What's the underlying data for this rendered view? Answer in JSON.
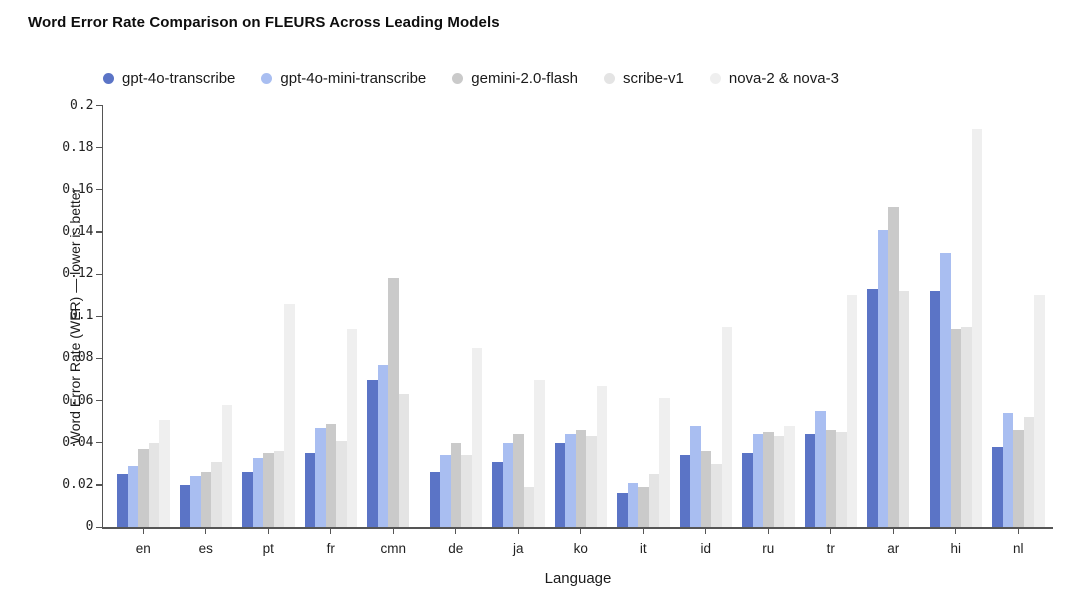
{
  "chart_data": {
    "type": "bar",
    "title": "Word Error Rate Comparison on FLEURS Across Leading Models",
    "xlabel": "Language",
    "ylabel": "Word Error Rate (WER) — lower is better",
    "ylim": [
      0,
      0.2
    ],
    "grid": false,
    "legend_position": "top",
    "yticks": [
      {
        "label": "0",
        "value": 0
      },
      {
        "label": "0.02",
        "value": 0.02
      },
      {
        "label": "0.04",
        "value": 0.04
      },
      {
        "label": "0.06",
        "value": 0.06
      },
      {
        "label": "0.08",
        "value": 0.08
      },
      {
        "label": "0.1",
        "value": 0.1
      },
      {
        "label": "0.12",
        "value": 0.12
      },
      {
        "label": "0.14",
        "value": 0.14
      },
      {
        "label": "0.16",
        "value": 0.16
      },
      {
        "label": "0.18",
        "value": 0.18
      },
      {
        "label": "0.2",
        "value": 0.2
      }
    ],
    "categories": [
      "en",
      "es",
      "pt",
      "fr",
      "cmn",
      "de",
      "ja",
      "ko",
      "it",
      "id",
      "ru",
      "tr",
      "ar",
      "hi",
      "nl"
    ],
    "series": [
      {
        "name": "gpt-4o-transcribe",
        "color": "#5b74c6",
        "values": [
          0.025,
          0.02,
          0.026,
          0.035,
          0.07,
          0.026,
          0.031,
          0.04,
          0.016,
          0.034,
          0.035,
          0.044,
          0.113,
          0.112,
          0.038
        ]
      },
      {
        "name": "gpt-4o-mini-transcribe",
        "color": "#a9bef1",
        "values": [
          0.029,
          0.024,
          0.033,
          0.047,
          0.077,
          0.034,
          0.04,
          0.044,
          0.021,
          0.048,
          0.044,
          0.055,
          0.141,
          0.13,
          0.054
        ]
      },
      {
        "name": "gemini-2.0-flash",
        "color": "#cacaca",
        "values": [
          0.037,
          0.026,
          0.035,
          0.049,
          0.118,
          0.04,
          0.044,
          0.046,
          0.019,
          0.036,
          0.045,
          0.046,
          0.152,
          0.094,
          0.046
        ]
      },
      {
        "name": "scribe-v1",
        "color": "#e4e4e4",
        "values": [
          0.04,
          0.031,
          0.036,
          0.041,
          0.063,
          0.034,
          0.019,
          0.043,
          0.025,
          0.03,
          0.043,
          0.045,
          0.112,
          0.095,
          0.052
        ]
      },
      {
        "name": "nova-2 & nova-3",
        "color": "#efefef",
        "values": [
          0.051,
          0.058,
          0.106,
          0.094,
          null,
          0.085,
          0.07,
          0.067,
          0.061,
          0.095,
          0.048,
          0.11,
          null,
          0.189,
          0.11
        ]
      }
    ]
  }
}
